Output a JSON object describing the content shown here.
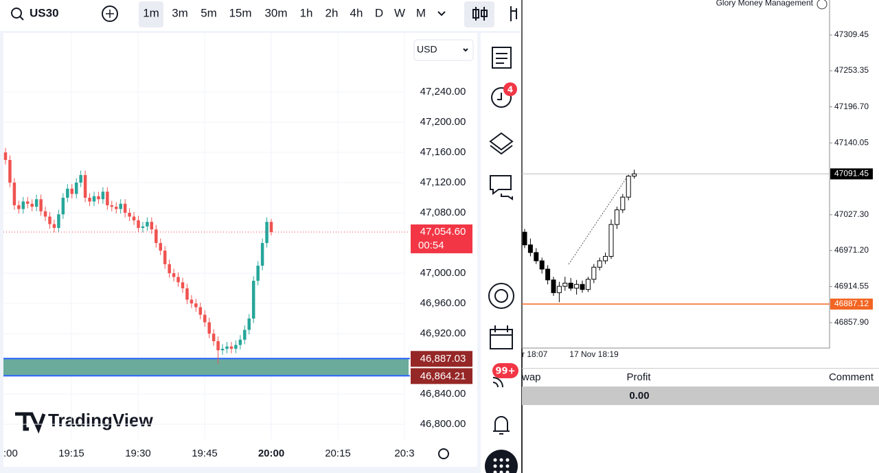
{
  "toolbar": {
    "symbol": "US30",
    "timeframes": [
      "1m",
      "3m",
      "5m",
      "15m",
      "30m",
      "1h",
      "2h",
      "4h",
      "D",
      "W",
      "M"
    ],
    "active": "1m"
  },
  "left_chart": {
    "type": "candlestick",
    "currency": "USD",
    "logo": "TradingView",
    "ylim": [
      46780,
      47290
    ],
    "yticks": [
      {
        "value": 47240,
        "label": "47,240.00"
      },
      {
        "value": 47200,
        "label": "47,200.00"
      },
      {
        "value": 47160,
        "label": "47,160.00"
      },
      {
        "value": 47120,
        "label": "47,120.00"
      },
      {
        "value": 47080,
        "label": "47,080.00"
      },
      {
        "value": 47000,
        "label": "47,000.00"
      },
      {
        "value": 46960,
        "label": "46,960.00"
      },
      {
        "value": 46920,
        "label": "46,920.00"
      },
      {
        "value": 46840,
        "label": "46,840.00"
      },
      {
        "value": 46800,
        "label": "46,800.00"
      }
    ],
    "xticks": [
      ":00",
      "19:15",
      "19:30",
      "19:45",
      "20:00",
      "20:15",
      "20:3"
    ],
    "up_color": "#26a69a",
    "down_color": "#ef5350",
    "price_tag": {
      "value": 47054.6,
      "label": "47,054.60",
      "countdown": "00:54",
      "color": "#f23645"
    },
    "zone": {
      "color": "#6aab9c",
      "border": "#2962ff",
      "top": {
        "value": 46887.03,
        "label": "46,887.03"
      },
      "bottom": {
        "value": 46864.21,
        "label": "46,864.21"
      }
    },
    "candles": [
      [
        47160,
        47166,
        47144,
        47150
      ],
      [
        47150,
        47156,
        47114,
        47120
      ],
      [
        47120,
        47126,
        47084,
        47090
      ],
      [
        47090,
        47096,
        47079,
        47085
      ],
      [
        47085,
        47101,
        47079,
        47095
      ],
      [
        47095,
        47101,
        47086,
        47092
      ],
      [
        47092,
        47098,
        47082,
        47088
      ],
      [
        47088,
        47104,
        47082,
        47098
      ],
      [
        47098,
        47104,
        47076,
        47082
      ],
      [
        47082,
        47088,
        47069,
        47075
      ],
      [
        47075,
        47081,
        47059,
        47065
      ],
      [
        47065,
        47071,
        47054,
        47060
      ],
      [
        47060,
        47084,
        47054,
        47078
      ],
      [
        47078,
        47106,
        47072,
        47100
      ],
      [
        47100,
        47118,
        47094,
        47112
      ],
      [
        47112,
        47118,
        47099,
        47105
      ],
      [
        47105,
        47126,
        47099,
        47120
      ],
      [
        47120,
        47136,
        47114,
        47130
      ],
      [
        47130,
        47136,
        47094,
        47100
      ],
      [
        47100,
        47106,
        47089,
        47095
      ],
      [
        47095,
        47108,
        47089,
        47102
      ],
      [
        47102,
        47108,
        47092,
        47098
      ],
      [
        47098,
        47114,
        47092,
        47108
      ],
      [
        47108,
        47114,
        47084,
        47090
      ],
      [
        47090,
        47096,
        47082,
        47088
      ],
      [
        47088,
        47094,
        47079,
        47085
      ],
      [
        47085,
        47098,
        47079,
        47092
      ],
      [
        47092,
        47098,
        47074,
        47080
      ],
      [
        47080,
        47086,
        47069,
        47075
      ],
      [
        47075,
        47081,
        47064,
        47070
      ],
      [
        47070,
        47076,
        47054,
        47060
      ],
      [
        47060,
        47068,
        47054,
        47062
      ],
      [
        47062,
        47074,
        47056,
        47068
      ],
      [
        47068,
        47074,
        47052,
        47058
      ],
      [
        47058,
        47064,
        47034,
        47040
      ],
      [
        47040,
        47046,
        47024,
        47030
      ],
      [
        47030,
        47036,
        47006,
        47012
      ],
      [
        47012,
        47018,
        46994,
        47000
      ],
      [
        47000,
        47006,
        46989,
        46995
      ],
      [
        46995,
        47001,
        46982,
        46988
      ],
      [
        46988,
        46994,
        46974,
        46980
      ],
      [
        46980,
        46986,
        46959,
        46965
      ],
      [
        46965,
        46971,
        46954,
        46960
      ],
      [
        46960,
        46966,
        46949,
        46955
      ],
      [
        46955,
        46961,
        46939,
        46945
      ],
      [
        46945,
        46951,
        46929,
        46935
      ],
      [
        46935,
        46941,
        46914,
        46920
      ],
      [
        46920,
        46926,
        46904,
        46910
      ],
      [
        46910,
        46916,
        46880,
        46898
      ],
      [
        46898,
        46906,
        46892,
        46900
      ],
      [
        46900,
        46909,
        46894,
        46903
      ],
      [
        46903,
        46909,
        46894,
        46900
      ],
      [
        46900,
        46911,
        46894,
        46905
      ],
      [
        46905,
        46918,
        46899,
        46912
      ],
      [
        46912,
        46931,
        46906,
        46925
      ],
      [
        46925,
        46946,
        46919,
        46940
      ],
      [
        46940,
        46996,
        46934,
        46990
      ],
      [
        46990,
        47016,
        46984,
        47010
      ],
      [
        47010,
        47046,
        47004,
        47040
      ],
      [
        47040,
        47074,
        47034,
        47068
      ],
      [
        47068,
        47072,
        47050,
        47054.6
      ]
    ]
  },
  "sidebar": {
    "alerts_badge": "4",
    "news_badge": "99+"
  },
  "right_chart": {
    "type": "candlestick",
    "account": "Glory Money Management",
    "yticks": [
      {
        "value": 47309.45,
        "label": "47309.45"
      },
      {
        "value": 47253.35,
        "label": "47253.35"
      },
      {
        "value": 47196.7,
        "label": "47196.70"
      },
      {
        "value": 47140.05,
        "label": "47140.05"
      },
      {
        "value": 47027.3,
        "label": "47027.30"
      },
      {
        "value": 46971.2,
        "label": "46971.20"
      },
      {
        "value": 46914.55,
        "label": "46914.55"
      },
      {
        "value": 46857.9,
        "label": "46857.90"
      }
    ],
    "xticks": [
      "r 18:07",
      "17 Nov 18:19"
    ],
    "bid": {
      "value": 47091.45,
      "label": "47091.45"
    },
    "level": {
      "value": 46887.12,
      "label": "46887.12",
      "color": "#f26522"
    },
    "candles": [
      [
        47000,
        47005,
        46975,
        46980
      ],
      [
        46980,
        46990,
        46962,
        46968
      ],
      [
        46968,
        46975,
        46950,
        46955
      ],
      [
        46955,
        46960,
        46935,
        46942
      ],
      [
        46942,
        46948,
        46918,
        46925
      ],
      [
        46925,
        46930,
        46900,
        46905
      ],
      [
        46905,
        46922,
        46890,
        46915
      ],
      [
        46915,
        46930,
        46908,
        46920
      ],
      [
        46920,
        46928,
        46908,
        46912
      ],
      [
        46912,
        46925,
        46902,
        46918
      ],
      [
        46918,
        46924,
        46905,
        46910
      ],
      [
        46910,
        46930,
        46906,
        46926
      ],
      [
        46926,
        46950,
        46920,
        46945
      ],
      [
        46945,
        46960,
        46940,
        46955
      ],
      [
        46955,
        46968,
        46950,
        46962
      ],
      [
        46962,
        47020,
        46958,
        47012
      ],
      [
        47012,
        47040,
        47005,
        47035
      ],
      [
        47035,
        47060,
        47030,
        47055
      ],
      [
        47055,
        47090,
        47050,
        47088
      ],
      [
        47088,
        47098,
        47084,
        47091.45
      ]
    ]
  },
  "table": {
    "headers": [
      "wap",
      "Profit",
      "Comment"
    ],
    "total": "0.00"
  }
}
